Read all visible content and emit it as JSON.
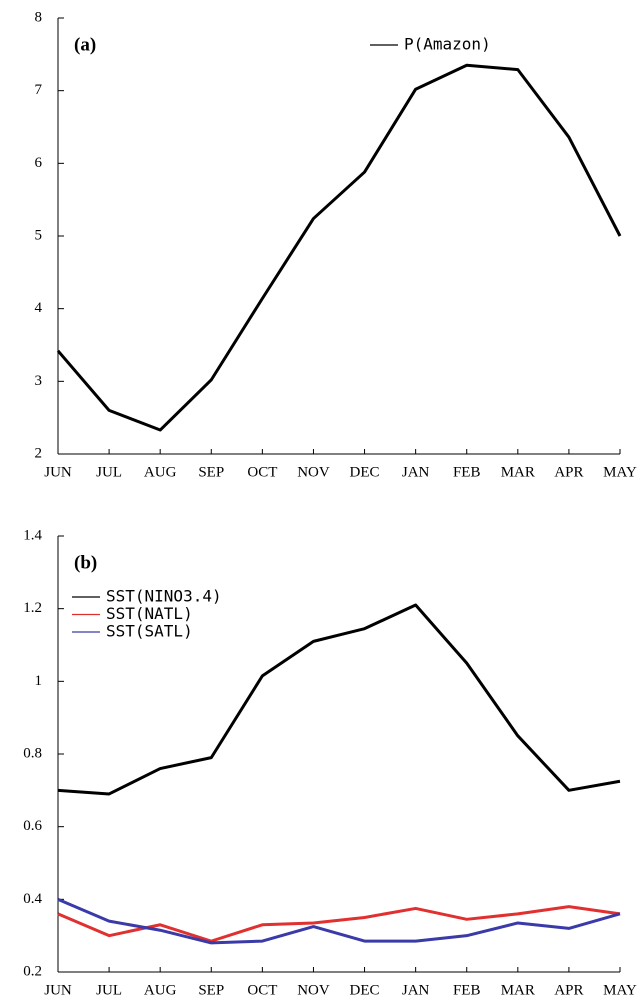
{
  "chart_data": [
    {
      "type": "line",
      "panel_label": "(a)",
      "categories": [
        "JUN",
        "JUL",
        "AUG",
        "SEP",
        "OCT",
        "NOV",
        "DEC",
        "JAN",
        "FEB",
        "MAR",
        "APR",
        "MAY"
      ],
      "series": [
        {
          "name": "P(Amazon)",
          "color": "#000000",
          "values": [
            3.42,
            2.6,
            2.33,
            3.02,
            4.14,
            5.24,
            5.88,
            7.02,
            7.35,
            7.29,
            6.36,
            5.0
          ]
        }
      ],
      "ylim": [
        2,
        8
      ],
      "yticks": [
        2,
        3,
        4,
        5,
        6,
        7,
        8
      ],
      "legend": "upper right"
    },
    {
      "type": "line",
      "panel_label": "(b)",
      "categories": [
        "JUN",
        "JUL",
        "AUG",
        "SEP",
        "OCT",
        "NOV",
        "DEC",
        "JAN",
        "FEB",
        "MAR",
        "APR",
        "MAY"
      ],
      "series": [
        {
          "name": "SST(NINO3.4)",
          "color": "#000000",
          "values": [
            0.7,
            0.69,
            0.76,
            0.79,
            1.015,
            1.11,
            1.145,
            1.21,
            1.05,
            0.85,
            0.7,
            0.725
          ]
        },
        {
          "name": "SST(NATL)",
          "color": "#e03030",
          "values": [
            0.36,
            0.3,
            0.33,
            0.285,
            0.33,
            0.335,
            0.35,
            0.375,
            0.345,
            0.36,
            0.38,
            0.36
          ]
        },
        {
          "name": "SST(SATL)",
          "color": "#3a3aa8",
          "values": [
            0.4,
            0.34,
            0.315,
            0.28,
            0.285,
            0.325,
            0.285,
            0.285,
            0.3,
            0.335,
            0.32,
            0.36
          ]
        }
      ],
      "ylim": [
        0.2,
        1.4
      ],
      "yticks": [
        0.2,
        0.4,
        0.6,
        0.8,
        1,
        1.2,
        1.4
      ],
      "legend": "upper left"
    }
  ]
}
